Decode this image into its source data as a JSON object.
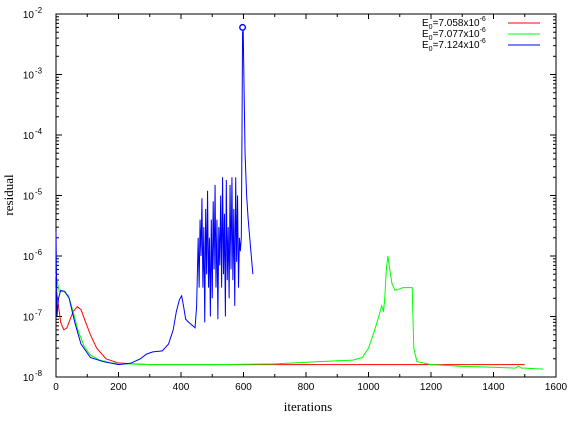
{
  "chart_data": {
    "type": "line",
    "xlabel": "iterations",
    "ylabel": "residual",
    "xlim": [
      0,
      1600
    ],
    "ylim_log10": [
      -8,
      -2
    ],
    "y_scale": "log",
    "x_ticks": [
      0,
      200,
      400,
      600,
      800,
      1000,
      1200,
      1400,
      1600
    ],
    "x_tick_labels": [
      "0",
      "200",
      "400",
      "600",
      "800",
      "1000",
      "1200",
      "1400",
      "1600"
    ],
    "y_tick_exponents": [
      -8,
      -7,
      -6,
      -5,
      -4,
      -3,
      -2
    ],
    "y_tick_base": "10",
    "grid": false,
    "legend_position": "top-right",
    "series": [
      {
        "name_main": "E",
        "name_sub": "0",
        "name_mid": "=7.058x10",
        "name_sup": "-6",
        "color": "#ff0000",
        "points": [
          [
            0,
            3e-07
          ],
          [
            8,
            1.5e-07
          ],
          [
            15,
            8e-08
          ],
          [
            25,
            6e-08
          ],
          [
            35,
            6.5e-08
          ],
          [
            45,
            9e-08
          ],
          [
            55,
            1.2e-07
          ],
          [
            68,
            1.45e-07
          ],
          [
            80,
            1.3e-07
          ],
          [
            95,
            8e-08
          ],
          [
            110,
            5e-08
          ],
          [
            130,
            3e-08
          ],
          [
            160,
            2e-08
          ],
          [
            200,
            1.7e-08
          ],
          [
            300,
            1.6e-08
          ],
          [
            500,
            1.6e-08
          ],
          [
            800,
            1.6e-08
          ],
          [
            1000,
            1.6e-08
          ],
          [
            1200,
            1.6e-08
          ],
          [
            1300,
            1.6e-08
          ],
          [
            1400,
            1.6e-08
          ],
          [
            1500,
            1.6e-08
          ]
        ]
      },
      {
        "name_main": "E",
        "name_sub": "0",
        "name_mid": "=7.077x10",
        "name_sup": "-6",
        "color": "#00ff00",
        "points": [
          [
            0,
            5e-07
          ],
          [
            10,
            2.6e-07
          ],
          [
            25,
            2.6e-07
          ],
          [
            40,
            2.2e-07
          ],
          [
            55,
            1.2e-07
          ],
          [
            70,
            6e-08
          ],
          [
            90,
            3.2e-08
          ],
          [
            110,
            2.3e-08
          ],
          [
            140,
            1.9e-08
          ],
          [
            180,
            1.7e-08
          ],
          [
            220,
            1.65e-08
          ],
          [
            300,
            1.6e-08
          ],
          [
            500,
            1.6e-08
          ],
          [
            700,
            1.65e-08
          ],
          [
            850,
            1.8e-08
          ],
          [
            950,
            1.9e-08
          ],
          [
            980,
            2.1e-08
          ],
          [
            1000,
            3e-08
          ],
          [
            1020,
            6e-08
          ],
          [
            1035,
            1.1e-07
          ],
          [
            1042,
            1.5e-07
          ],
          [
            1045,
            1.4e-07
          ],
          [
            1048,
            1.2e-07
          ],
          [
            1052,
            2e-07
          ],
          [
            1057,
            6e-07
          ],
          [
            1062,
            1e-06
          ],
          [
            1068,
            6e-07
          ],
          [
            1075,
            3.5e-07
          ],
          [
            1085,
            2.7e-07
          ],
          [
            1095,
            2.8e-07
          ],
          [
            1110,
            3e-07
          ],
          [
            1125,
            3e-07
          ],
          [
            1140,
            3e-07
          ],
          [
            1142,
            1e-07
          ],
          [
            1145,
            3e-08
          ],
          [
            1155,
            1.8e-08
          ],
          [
            1200,
            1.6e-08
          ],
          [
            1300,
            1.5e-08
          ],
          [
            1400,
            1.45e-08
          ],
          [
            1470,
            1.4e-08
          ],
          [
            1480,
            1.5e-08
          ],
          [
            1490,
            1.4e-08
          ],
          [
            1500,
            1.4e-08
          ],
          [
            1560,
            1.35e-08
          ]
        ]
      },
      {
        "name_main": "E",
        "name_sub": "0",
        "name_mid": "=7.124x10",
        "name_sup": "-6",
        "color": "#0000ff",
        "points": [
          [
            0,
            2.5e-06
          ],
          [
            3,
            1e-07
          ],
          [
            8,
            2e-07
          ],
          [
            15,
            2.7e-07
          ],
          [
            28,
            2.6e-07
          ],
          [
            42,
            2e-07
          ],
          [
            60,
            8e-08
          ],
          [
            80,
            3.5e-08
          ],
          [
            110,
            2.1e-08
          ],
          [
            150,
            1.8e-08
          ],
          [
            200,
            1.6e-08
          ],
          [
            240,
            1.7e-08
          ],
          [
            270,
            2e-08
          ],
          [
            290,
            2.4e-08
          ],
          [
            310,
            2.6e-08
          ],
          [
            340,
            2.7e-08
          ],
          [
            360,
            3.5e-08
          ],
          [
            375,
            6e-08
          ],
          [
            385,
            1.2e-07
          ],
          [
            395,
            1.9e-07
          ],
          [
            402,
            2.2e-07
          ],
          [
            408,
            1.5e-07
          ],
          [
            415,
            9e-08
          ],
          [
            425,
            8e-08
          ],
          [
            438,
            7e-08
          ],
          [
            445,
            6.5e-08
          ],
          [
            450,
            1.5e-07
          ],
          [
            455,
            2e-06
          ],
          [
            458,
            3e-07
          ],
          [
            461,
            4e-06
          ],
          [
            464,
            1e-06
          ],
          [
            467,
            9e-06
          ],
          [
            470,
            3e-07
          ],
          [
            473,
            3e-06
          ],
          [
            476,
            8e-08
          ],
          [
            479,
            6e-06
          ],
          [
            482,
            5e-07
          ],
          [
            485,
            1.2e-05
          ],
          [
            488,
            3e-07
          ],
          [
            491,
            2e-06
          ],
          [
            494,
            1e-07
          ],
          [
            497,
            4e-06
          ],
          [
            500,
            2e-07
          ],
          [
            503,
            8e-06
          ],
          [
            506,
            6e-07
          ],
          [
            509,
            1.5e-05
          ],
          [
            512,
            3e-07
          ],
          [
            515,
            4e-06
          ],
          [
            518,
            9e-08
          ],
          [
            521,
            3e-06
          ],
          [
            524,
            7e-07
          ],
          [
            527,
            1e-05
          ],
          [
            530,
            3e-07
          ],
          [
            533,
            2e-05
          ],
          [
            536,
            5e-07
          ],
          [
            539,
            5e-06
          ],
          [
            542,
            1e-07
          ],
          [
            545,
            1.8e-05
          ],
          [
            548,
            4e-07
          ],
          [
            551,
            3e-06
          ],
          [
            554,
            2e-07
          ],
          [
            557,
            1.5e-05
          ],
          [
            560,
            6e-07
          ],
          [
            563,
            2e-05
          ],
          [
            566,
            4e-07
          ],
          [
            569,
            6e-06
          ],
          [
            572,
            1.5e-07
          ],
          [
            575,
            2e-05
          ],
          [
            578,
            8e-07
          ],
          [
            581,
            1e-05
          ],
          [
            584,
            3e-07
          ],
          [
            587,
            2e-06
          ],
          [
            590,
            1.2e-06
          ],
          [
            593,
            2e-06
          ],
          [
            595,
            8e-05
          ],
          [
            597,
            0.005
          ],
          [
            599,
            0.0055
          ],
          [
            602,
            0.0005
          ],
          [
            605,
            5e-05
          ],
          [
            610,
            1e-05
          ],
          [
            615,
            4e-06
          ],
          [
            622,
            1.5e-06
          ],
          [
            630,
            5e-07
          ]
        ]
      }
    ],
    "highlight_point": {
      "x": 597,
      "y": 0.006,
      "color": "#0000ff"
    }
  }
}
